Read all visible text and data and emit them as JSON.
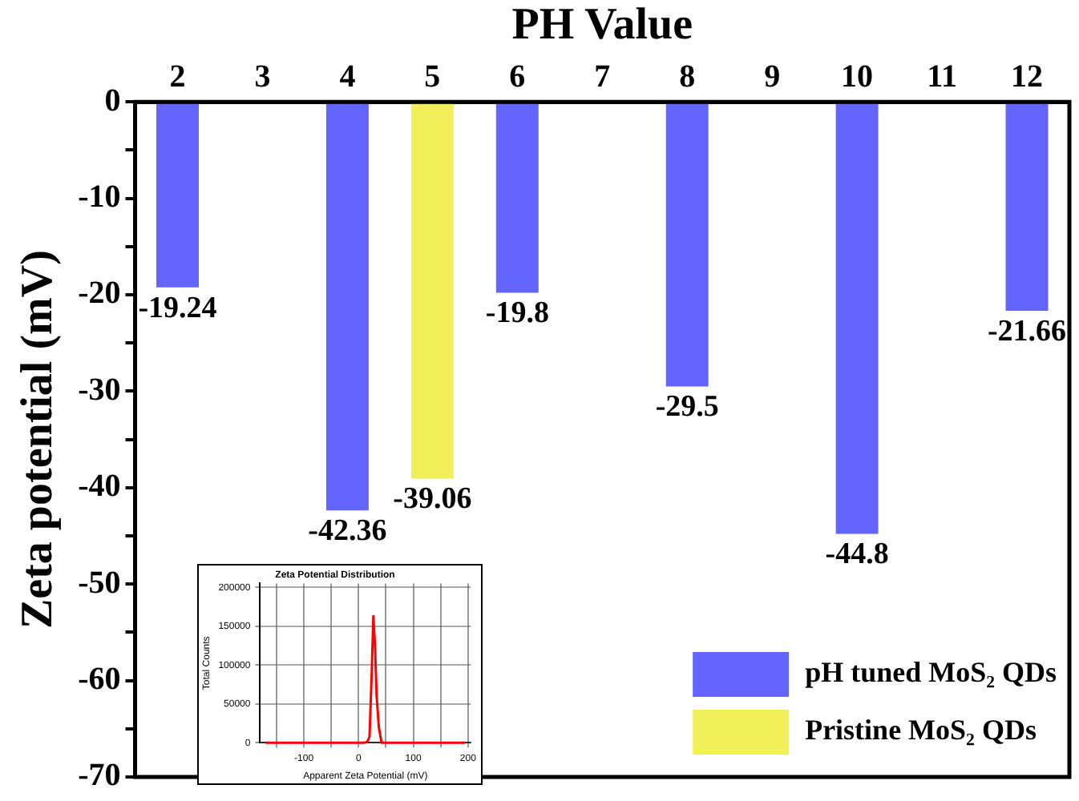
{
  "chart_data": [
    {
      "type": "bar",
      "xlabel": "PH Value",
      "ylabel": "Zeta potential (mV)",
      "categories": [
        "2",
        "3",
        "4",
        "5",
        "6",
        "7",
        "8",
        "9",
        "10",
        "11",
        "12"
      ],
      "series": [
        {
          "name": "pH tuned MoS₂ QDs",
          "color": "#6464ff",
          "values": [
            -19.24,
            null,
            -42.36,
            null,
            -19.8,
            null,
            -29.5,
            null,
            -44.8,
            null,
            -21.66
          ]
        },
        {
          "name": "Pristine MoS₂ QDs",
          "color": "#f2f05a",
          "values": [
            null,
            null,
            null,
            -39.06,
            null,
            null,
            null,
            null,
            null,
            null,
            null
          ]
        }
      ],
      "ylim": [
        -70,
        0
      ],
      "yticks": [
        0,
        {
          "value": -5,
          "label": null
        },
        -10,
        {
          "value": -15,
          "label": null
        },
        -20,
        {
          "value": -25,
          "label": null
        },
        -30,
        {
          "value": -35,
          "label": null
        },
        -40,
        {
          "value": -45,
          "label": null
        },
        -50,
        {
          "value": -55,
          "label": null
        },
        -60,
        {
          "value": -65,
          "label": null
        },
        -70
      ],
      "data_labels": true,
      "legend": "bottom right",
      "grid": false
    },
    {
      "type": "line",
      "title": "Zeta Potential Distribution",
      "xlabel": "Apparent Zeta Potential (mV)",
      "ylabel": "Total Counts",
      "series": [
        {
          "color": "#ff0000",
          "x": [
            -170,
            10,
            16,
            20,
            24,
            27,
            30,
            33,
            37,
            42,
            195
          ],
          "values": [
            0,
            0,
            1000,
            8000,
            90000,
            163000,
            125000,
            60000,
            20000,
            0,
            0
          ]
        }
      ],
      "xlim": [
        -180,
        205
      ],
      "xticks": [
        {
          "value": -150,
          "label": null
        },
        -100,
        {
          "value": -50,
          "label": null
        },
        0,
        {
          "value": 50,
          "label": null
        },
        100,
        {
          "value": 150,
          "label": null
        },
        200
      ],
      "ylim": [
        0,
        205000
      ],
      "yticks": [
        0,
        50000,
        100000,
        150000,
        200000
      ],
      "grid": true,
      "marker": "none",
      "line_style": "solid"
    }
  ]
}
